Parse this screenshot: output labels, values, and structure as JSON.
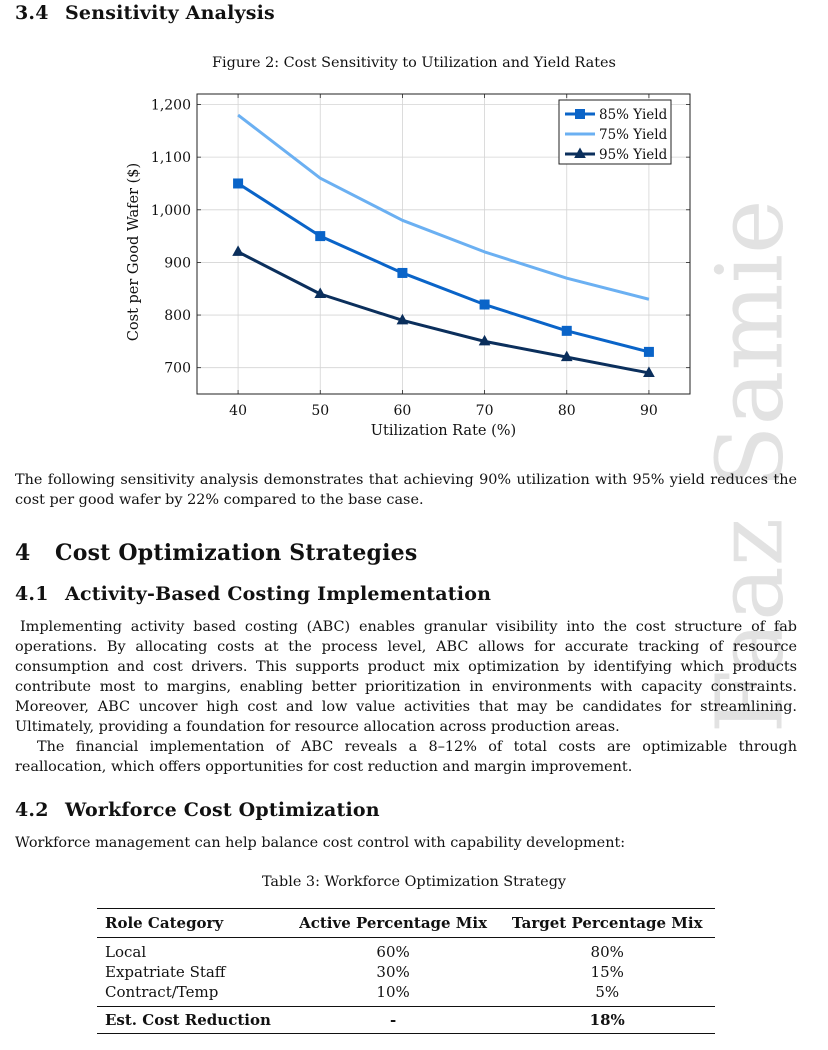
{
  "sec34": {
    "num": "3.4",
    "title": "Sensitivity Analysis"
  },
  "figure": {
    "caption": "Figure 2: Cost Sensitivity to Utilization and Yield Rates"
  },
  "chart_data": {
    "type": "line",
    "xlabel": "Utilization Rate (%)",
    "ylabel": "Cost per Good Wafer ($)",
    "x": [
      40,
      50,
      60,
      70,
      80,
      90
    ],
    "xlim": [
      35,
      95
    ],
    "ylim": [
      650,
      1220
    ],
    "xticks": [
      40,
      50,
      60,
      70,
      80,
      90
    ],
    "yticks": [
      700,
      800,
      900,
      1000,
      1100,
      1200
    ],
    "ytick_labels": [
      "700",
      "800",
      "900",
      "1,000",
      "1,100",
      "1,200"
    ],
    "grid": true,
    "legend_position": "top-right",
    "series": [
      {
        "name": "85% Yield",
        "values": [
          1050,
          950,
          880,
          820,
          770,
          730
        ],
        "color": "#0a64c8",
        "marker": "square"
      },
      {
        "name": "75% Yield",
        "values": [
          1180,
          1060,
          980,
          920,
          870,
          830
        ],
        "color": "#6bb0f2",
        "marker": "none"
      },
      {
        "name": "95% Yield",
        "values": [
          920,
          840,
          790,
          750,
          720,
          690
        ],
        "color": "#0b2f5c",
        "marker": "triangle"
      }
    ]
  },
  "para_sensitivity": "The following sensitivity analysis demonstrates that achieving 90% utilization with 95% yield reduces the cost per good wafer by 22% compared to the base case.",
  "sec4": {
    "num": "4",
    "title": "Cost Optimization Strategies"
  },
  "sec41": {
    "num": "4.1",
    "title": "Activity-Based Costing Implementation"
  },
  "para_abc1": "Implementing activity based costing (ABC) enables granular visibility into the cost structure of fab operations. By allocating costs at the process level, ABC allows for accurate tracking of resource consumption and cost drivers. This supports product mix optimization by identifying which products contribute most to margins, enabling better prioritization in environments with capacity constraints. Moreover, ABC uncover high cost and low value activities that may be candidates for streamlining. Ultimately, providing a foundation for resource allocation across production areas.",
  "para_abc2": "The financial implementation of ABC reveals a 8–12% of total costs are optimizable through reallocation, which offers opportunities for cost reduction and margin improvement.",
  "sec42": {
    "num": "4.2",
    "title": "Workforce Cost Optimization"
  },
  "para_workforce": "Workforce management can help balance cost control with capability development:",
  "table3": {
    "caption": "Table 3: Workforce Optimization Strategy",
    "headers": [
      "Role Category",
      "Active Percentage Mix",
      "Target Percentage Mix"
    ],
    "rows": [
      [
        "Local",
        "60%",
        "80%"
      ],
      [
        "Expatriate Staff",
        "30%",
        "15%"
      ],
      [
        "Contract/Temp",
        "10%",
        "5%"
      ]
    ],
    "footer": [
      "Est. Cost Reduction",
      "-",
      "18%"
    ]
  },
  "watermark": "Faaz Samie"
}
